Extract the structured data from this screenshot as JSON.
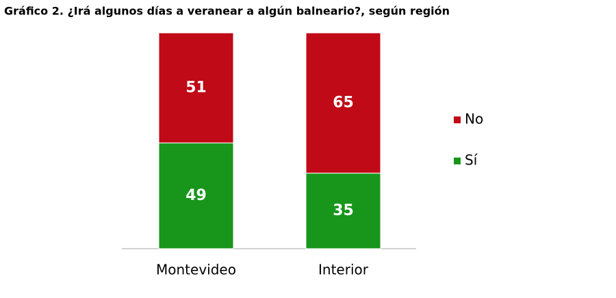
{
  "chart_data": {
    "type": "stacked_bar",
    "title": "Gráfico 2. ¿Irá algunos días a veranear a algún balneario?, según región",
    "categories": [
      "Montevideo",
      "Interior"
    ],
    "series": [
      {
        "name": "Sí",
        "color": "#17961b",
        "values": [
          49,
          35
        ]
      },
      {
        "name": "No",
        "color": "#c00a17",
        "values": [
          51,
          65
        ]
      }
    ],
    "legend": "right"
  }
}
